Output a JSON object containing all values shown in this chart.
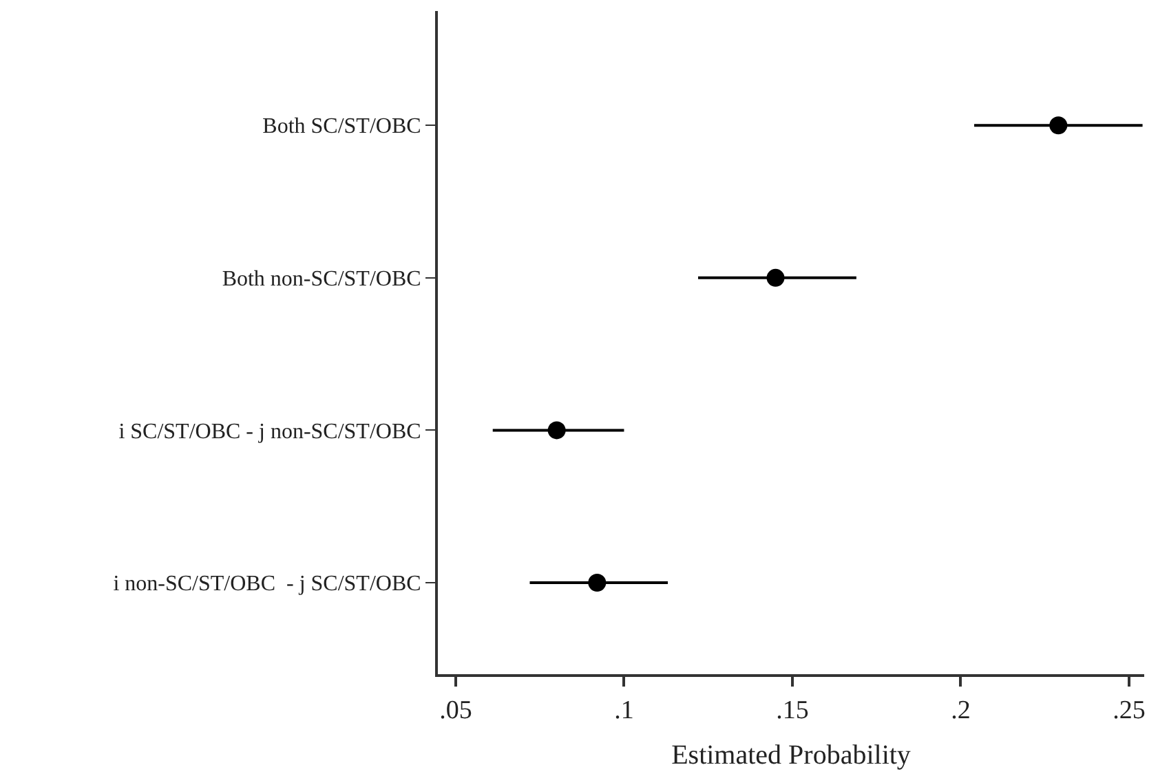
{
  "chart_data": {
    "type": "scatter",
    "orientation": "horizontal",
    "xlabel": "Estimated Probability",
    "categories": [
      "Both SC/ST/OBC",
      "Both non-SC/ST/OBC",
      "i SC/ST/OBC - j non-SC/ST/OBC",
      "i non-SC/ST/OBC  - j SC/ST/OBC"
    ],
    "color": "#000000",
    "values": [
      0.229,
      0.145,
      0.08,
      0.092
    ],
    "errors": [
      [
        0.204,
        0.254
      ],
      [
        0.122,
        0.169
      ],
      [
        0.061,
        0.1
      ],
      [
        0.072,
        0.113
      ]
    ],
    "xlim": [
      0.0447,
      0.2545
    ],
    "xticks": [
      {
        "value": 0.05,
        "label": ".05"
      },
      {
        "value": 0.1,
        "label": ".1"
      },
      {
        "value": 0.15,
        "label": ".15"
      },
      {
        "value": 0.2,
        "label": ".2"
      },
      {
        "value": 0.25,
        "label": ".25"
      }
    ],
    "marker": "circle"
  }
}
